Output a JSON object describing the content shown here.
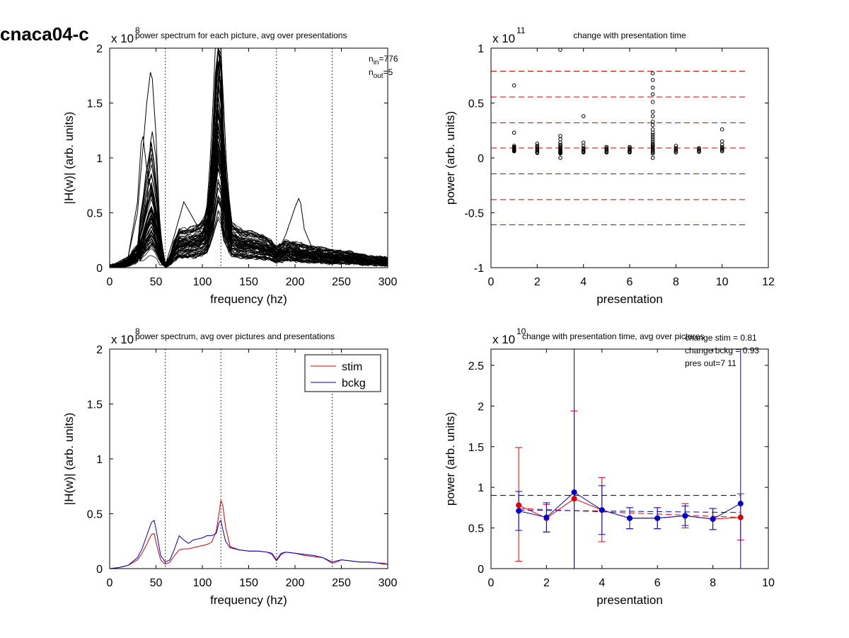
{
  "figure_title": "cnaca04-c",
  "chart_data": [
    {
      "id": "p1",
      "type": "line",
      "title": "power spectrum for each picture, avg over presentations",
      "xlabel": "frequency (hz)",
      "ylabel": "|H(w)| (arb. units)",
      "xlim": [
        0,
        300
      ],
      "ylim": [
        0,
        2
      ],
      "xticks": [
        0,
        50,
        100,
        150,
        200,
        250,
        300
      ],
      "yticks": [
        0,
        0.5,
        1,
        1.5,
        2
      ],
      "ytick_labels": [
        "0",
        "0.5",
        "1",
        "1.5",
        "2"
      ],
      "exponent_label": "x 10",
      "exponent_power": "8",
      "vlines": [
        60,
        120,
        180,
        240,
        300
      ],
      "annotation_lines": [
        {
          "base": "n",
          "sub": "in",
          "rest": "=776"
        },
        {
          "base": "n",
          "sub": "out",
          "rest": "=5"
        }
      ],
      "series_style": {
        "color": "#000000",
        "count": 70
      },
      "base_curve": {
        "x": [
          0,
          10,
          20,
          30,
          35,
          40,
          45,
          50,
          55,
          60,
          65,
          70,
          75,
          80,
          90,
          100,
          105,
          110,
          115,
          118,
          120,
          122,
          125,
          130,
          140,
          150,
          160,
          170,
          180,
          190,
          200,
          210,
          220,
          240,
          260,
          280,
          300
        ],
        "y": [
          0.01,
          0.02,
          0.05,
          0.12,
          0.2,
          0.32,
          0.4,
          0.3,
          0.1,
          0.02,
          0.06,
          0.15,
          0.2,
          0.2,
          0.21,
          0.24,
          0.28,
          0.36,
          0.5,
          0.55,
          0.5,
          0.38,
          0.3,
          0.24,
          0.2,
          0.19,
          0.18,
          0.16,
          0.11,
          0.14,
          0.13,
          0.12,
          0.11,
          0.09,
          0.08,
          0.06,
          0.05
        ]
      },
      "peak_curves": [
        {
          "x": [
            0,
            20,
            30,
            35,
            40,
            45,
            50,
            55,
            60,
            80,
            100,
            110,
            115,
            118,
            120,
            125,
            130,
            150,
            200,
            250,
            300
          ],
          "y": [
            0.01,
            0.1,
            0.5,
            1.0,
            1.5,
            1.85,
            1.2,
            0.2,
            0.02,
            0.2,
            0.3,
            0.6,
            1.2,
            1.9,
            1.5,
            0.8,
            0.3,
            0.2,
            0.12,
            0.08,
            0.05
          ]
        },
        {
          "x": [
            0,
            20,
            30,
            35,
            40,
            45,
            50,
            55,
            60,
            80,
            100,
            110,
            115,
            118,
            120,
            125,
            130,
            150,
            200,
            250,
            300
          ],
          "y": [
            0.01,
            0.1,
            0.6,
            1.27,
            0.9,
            0.7,
            0.4,
            0.1,
            0.02,
            0.2,
            0.3,
            0.7,
            1.4,
            1.85,
            1.6,
            0.9,
            0.4,
            0.2,
            0.12,
            0.08,
            0.05
          ]
        },
        {
          "x": [
            0,
            20,
            30,
            40,
            45,
            50,
            55,
            60,
            70,
            80,
            90,
            100,
            110,
            115,
            118,
            120,
            122,
            125,
            130,
            150,
            180,
            190,
            200,
            205,
            210,
            220,
            250,
            300
          ],
          "y": [
            0.01,
            0.05,
            0.2,
            0.5,
            1.3,
            1.0,
            0.3,
            0.02,
            0.3,
            0.6,
            0.45,
            0.3,
            0.7,
            1.2,
            1.75,
            1.6,
            1.0,
            0.5,
            0.3,
            0.2,
            0.12,
            0.3,
            0.55,
            0.65,
            0.35,
            0.15,
            0.08,
            0.05
          ]
        }
      ]
    },
    {
      "id": "p2",
      "type": "scatter",
      "title": "change with presentation time",
      "xlabel": "presentation",
      "ylabel": "power (arb. units)",
      "xlim": [
        0,
        12
      ],
      "ylim": [
        -1,
        1
      ],
      "xticks": [
        0,
        2,
        4,
        6,
        8,
        10,
        12
      ],
      "yticks": [
        -1,
        -0.5,
        0,
        0.5,
        1
      ],
      "ytick_labels": [
        "-1",
        "-0.5",
        "0",
        "0.5",
        "1"
      ],
      "exponent_label": "x 10",
      "exponent_power": "11",
      "hlines": [
        0.79,
        0.555,
        0.32,
        0.09,
        -0.145,
        -0.38,
        -0.61
      ],
      "hline_xrange": [
        0,
        11
      ],
      "hline_color": "#cc0000",
      "points": [
        {
          "x": 1,
          "values": [
            0.66,
            0.23,
            0.11,
            0.1,
            0.095,
            0.09,
            0.085,
            0.08,
            0.075,
            0.07,
            0.065,
            0.06
          ]
        },
        {
          "x": 2,
          "values": [
            0.13,
            0.11,
            0.1,
            0.09,
            0.08,
            0.07,
            0.06,
            0.05,
            0.05,
            0.045
          ]
        },
        {
          "x": 3,
          "values": [
            0.985,
            0.2,
            0.17,
            0.14,
            0.12,
            0.11,
            0.1,
            0.09,
            0.08,
            0.07,
            0.065,
            0.06,
            0.055,
            0.05,
            0.045,
            0.04,
            0.0
          ]
        },
        {
          "x": 4,
          "values": [
            0.38,
            0.14,
            0.11,
            0.09,
            0.08,
            0.07,
            0.06,
            0.055,
            0.05
          ]
        },
        {
          "x": 5,
          "values": [
            0.1,
            0.09,
            0.08,
            0.07,
            0.06,
            0.055,
            0.05
          ]
        },
        {
          "x": 6,
          "values": [
            0.1,
            0.09,
            0.08,
            0.07,
            0.06,
            0.055,
            0.05
          ]
        },
        {
          "x": 7,
          "values": [
            0.77,
            0.71,
            0.64,
            0.58,
            0.51,
            0.42,
            0.38,
            0.33,
            0.3,
            0.26,
            0.23,
            0.21,
            0.19,
            0.17,
            0.15,
            0.13,
            0.12,
            0.11,
            0.1,
            0.09,
            0.08,
            0.07,
            0.06,
            0.05,
            0.04,
            0.0
          ]
        },
        {
          "x": 8,
          "values": [
            0.11,
            0.09,
            0.08,
            0.07,
            0.06,
            0.05
          ]
        },
        {
          "x": 9,
          "values": [
            0.09,
            0.08,
            0.07,
            0.06,
            0.055
          ]
        },
        {
          "x": 10,
          "values": [
            0.26,
            0.15,
            0.12,
            0.1,
            0.09,
            0.08,
            0.07,
            0.06
          ]
        }
      ]
    },
    {
      "id": "p3",
      "type": "line",
      "title": "power spectrum, avg over pictures and presentations",
      "xlabel": "frequency (hz)",
      "ylabel": "|H(w)| (arb. units)",
      "xlim": [
        0,
        300
      ],
      "ylim": [
        0,
        2
      ],
      "xticks": [
        0,
        50,
        100,
        150,
        200,
        250,
        300
      ],
      "yticks": [
        0,
        0.5,
        1,
        1.5,
        2
      ],
      "ytick_labels": [
        "0",
        "0.5",
        "1",
        "1.5",
        "2"
      ],
      "exponent_label": "x 10",
      "exponent_power": "8",
      "vlines": [
        60,
        120,
        180,
        240,
        300
      ],
      "legend": "top-right",
      "x": [
        0,
        10,
        20,
        30,
        35,
        40,
        45,
        48,
        50,
        55,
        60,
        65,
        70,
        75,
        80,
        85,
        90,
        100,
        105,
        110,
        115,
        118,
        120,
        122,
        125,
        130,
        140,
        150,
        160,
        170,
        175,
        180,
        185,
        190,
        200,
        210,
        220,
        230,
        240,
        245,
        250,
        260,
        270,
        280,
        290,
        295,
        300
      ],
      "series": [
        {
          "name": "stim",
          "color": "#dd0000",
          "values": [
            0.0,
            0.01,
            0.03,
            0.08,
            0.14,
            0.22,
            0.31,
            0.32,
            0.24,
            0.08,
            0.04,
            0.06,
            0.12,
            0.17,
            0.18,
            0.18,
            0.19,
            0.21,
            0.22,
            0.24,
            0.34,
            0.5,
            0.62,
            0.58,
            0.38,
            0.2,
            0.17,
            0.16,
            0.16,
            0.15,
            0.13,
            0.07,
            0.13,
            0.15,
            0.14,
            0.12,
            0.11,
            0.1,
            0.05,
            0.06,
            0.08,
            0.07,
            0.06,
            0.06,
            0.05,
            0.04,
            0.04
          ]
        },
        {
          "name": "bckg",
          "color": "#0000cc",
          "values": [
            0.0,
            0.01,
            0.03,
            0.1,
            0.18,
            0.3,
            0.42,
            0.44,
            0.36,
            0.12,
            0.06,
            0.08,
            0.18,
            0.3,
            0.26,
            0.23,
            0.26,
            0.28,
            0.3,
            0.3,
            0.32,
            0.42,
            0.44,
            0.36,
            0.25,
            0.19,
            0.17,
            0.16,
            0.16,
            0.15,
            0.14,
            0.08,
            0.14,
            0.15,
            0.14,
            0.13,
            0.12,
            0.1,
            0.06,
            0.07,
            0.08,
            0.07,
            0.06,
            0.06,
            0.05,
            0.05,
            0.04
          ]
        }
      ]
    },
    {
      "id": "p4",
      "type": "line",
      "title": "change with presentation time, avg over pictures",
      "xlabel": "presentation",
      "ylabel": "power (arb. units)",
      "xlim": [
        0,
        10
      ],
      "ylim": [
        0,
        2.7
      ],
      "xticks": [
        0,
        2,
        4,
        6,
        8,
        10
      ],
      "yticks": [
        0,
        0.5,
        1,
        1.5,
        2,
        2.5
      ],
      "ytick_labels": [
        "0",
        "0.5",
        "1",
        "1.5",
        "2",
        "2.5"
      ],
      "exponent_label": "x 10",
      "exponent_power": "10",
      "annotations": [
        "change stim = 0.81",
        "change bckg = 0.93",
        "pres out=7 11"
      ],
      "hline": {
        "y": 0.9,
        "color": "#000000"
      },
      "x": [
        1,
        2,
        3,
        4,
        5,
        6,
        7,
        8,
        9
      ],
      "series": [
        {
          "name": "stim",
          "color": "#dd0000",
          "values": [
            0.78,
            0.62,
            0.86,
            0.72,
            0.62,
            0.62,
            0.65,
            0.61,
            0.63
          ],
          "err_low": [
            0.09,
            0.45,
            0.0,
            0.33,
            0.49,
            0.49,
            0.5,
            0.48,
            0.35
          ],
          "err_high": [
            1.49,
            0.79,
            1.94,
            1.12,
            0.75,
            0.75,
            0.8,
            0.74,
            0.92
          ],
          "trend": [
            0.74,
            0.63
          ]
        },
        {
          "name": "bckg",
          "color": "#0000cc",
          "values": [
            0.71,
            0.63,
            0.94,
            0.72,
            0.62,
            0.62,
            0.65,
            0.61,
            0.8
          ],
          "err_low": [
            0.47,
            0.45,
            0.0,
            0.42,
            0.49,
            0.49,
            0.53,
            0.48,
            0.0
          ],
          "err_high": [
            0.95,
            0.81,
            2.7,
            1.02,
            0.75,
            0.75,
            0.77,
            0.74,
            2.7
          ],
          "trend": [
            0.72,
            0.69
          ]
        }
      ]
    }
  ]
}
